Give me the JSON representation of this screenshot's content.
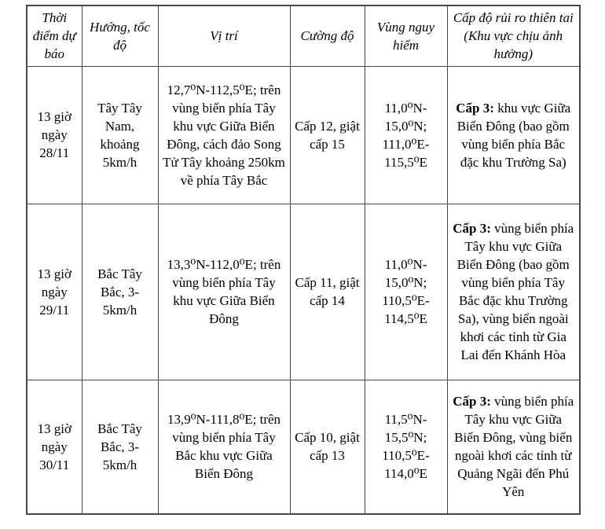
{
  "table": {
    "headers": [
      "Thời điểm dự báo",
      "Hướng, tốc độ",
      "Vị trí",
      "Cường độ",
      "Vùng nguy hiểm",
      "Cấp độ rủi ro thiên tai (Khu vực chịu ảnh hưởng)"
    ],
    "rows": [
      {
        "time": "13 giờ ngày 28/11",
        "direction_speed": "Tây Tây Nam, khoảng 5km/h",
        "position": "12,7⁰N-112,5⁰E; trên vùng biển phía Tây khu vực Giữa Biển Đông, cách đảo Song Tử Tây khoảng 250km về phía Tây Bắc",
        "intensity": "Cấp 12, giật cấp 15",
        "danger_zone": "11,0⁰N-15,0⁰N; 111,0⁰E-115,5⁰E",
        "risk": {
          "label": "Cấp 3:",
          "text": " khu vực Giữa Biển Đông (bao gồm vùng biển phía Bắc đặc khu Trường Sa)"
        }
      },
      {
        "time": "13 giờ ngày 29/11",
        "direction_speed": "Bắc Tây Bắc, 3-5km/h",
        "position": "13,3⁰N-112,0⁰E; trên vùng biển phía Tây khu vực Giữa Biển Đông",
        "intensity": "Cấp 11, giật cấp 14",
        "danger_zone": "11,0⁰N-15,0⁰N; 110,5⁰E-114,5⁰E",
        "risk": {
          "label": "Cấp 3:",
          "text": " vùng biển phía Tây khu vực Giữa Biển Đông (bao gồm vùng biển phía Tây Bắc đặc khu Trường Sa), vùng biển ngoài khơi các tỉnh từ Gia Lai đến Khánh Hòa"
        }
      },
      {
        "time": "13 giờ ngày 30/11",
        "direction_speed": "Bắc Tây Bắc, 3-5km/h",
        "position": "13,9⁰N-111,8⁰E; trên vùng biển phía Tây Bắc khu vực Giữa Biển Đông",
        "intensity": "Cấp 10, giật cấp 13",
        "danger_zone": "11,5⁰N-15,5⁰N; 110,5⁰E-114,0⁰E",
        "risk": {
          "label": "Cấp 3:",
          "text": " vùng biển phía Tây khu vực Giữa Biển Đông, vùng biển ngoài khơi các tỉnh từ Quảng Ngãi đến Phú Yên"
        }
      }
    ]
  }
}
